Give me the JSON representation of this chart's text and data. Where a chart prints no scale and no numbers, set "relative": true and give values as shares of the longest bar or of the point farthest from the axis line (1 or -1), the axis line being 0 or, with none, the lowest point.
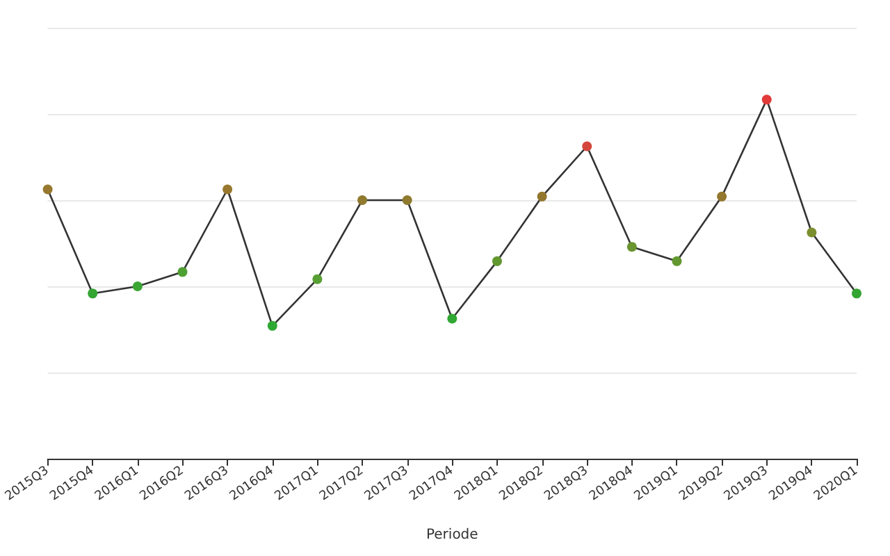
{
  "chart_data": {
    "type": "line",
    "xlabel": "Periode",
    "relative": true,
    "grid": "y",
    "marker": "circle",
    "line_style": "solid",
    "categories": [
      "2015Q3",
      "2015Q4",
      "2016Q1",
      "2016Q2",
      "2016Q3",
      "2016Q4",
      "2017Q1",
      "2017Q2",
      "2017Q3",
      "2017Q4",
      "2018Q1",
      "2018Q2",
      "2018Q3",
      "2018Q4",
      "2019Q1",
      "2019Q2",
      "2019Q3",
      "2019Q4",
      "2020Q1"
    ],
    "series": [
      {
        "color": "#333333",
        "values": [
          0.75,
          0.46,
          0.48,
          0.52,
          0.75,
          0.37,
          0.5,
          0.72,
          0.72,
          0.39,
          0.55,
          0.73,
          0.87,
          0.59,
          0.55,
          0.73,
          1,
          0.63,
          0.46
        ],
        "colors": [
          "#97782e",
          "#33a532",
          "#3aa534",
          "#4fa033",
          "#97782e",
          "#2fa833",
          "#58a033",
          "#8f7a2e",
          "#8f7a2e",
          "#31a833",
          "#62982f",
          "#93772e",
          "#d5473a",
          "#6a9530",
          "#62982f",
          "#93772e",
          "#e03a3a",
          "#7b8f2e",
          "#33a532"
        ]
      }
    ]
  }
}
